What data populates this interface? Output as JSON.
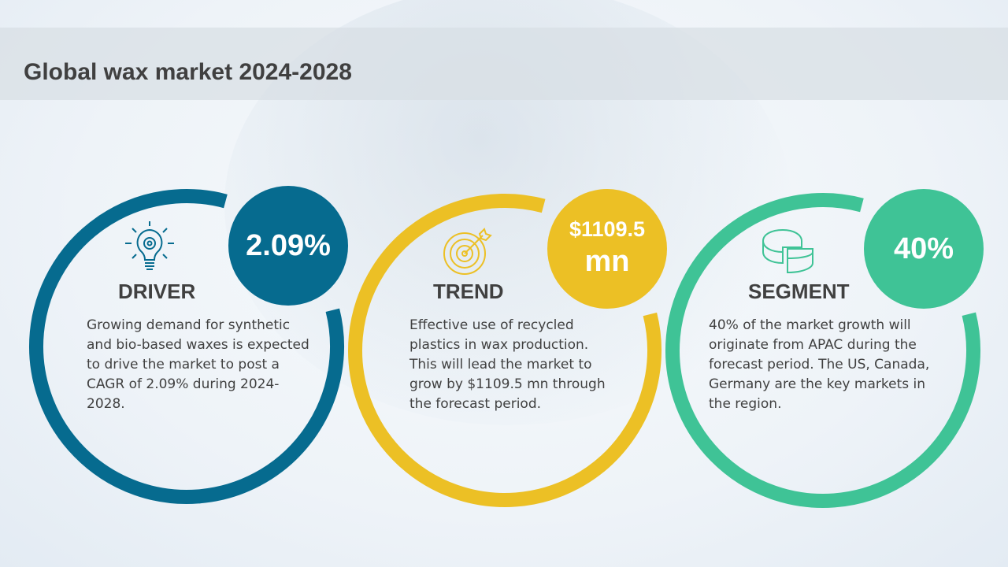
{
  "title": "Global wax market 2024-2028",
  "cards": [
    {
      "heading": "DRIVER",
      "value": "2.09%",
      "icon": "lightbulb-gear-icon",
      "color": "#066b8f",
      "text": "Growing demand for synthetic and bio-based waxes is expected to drive the market to post a CAGR of 2.09% during 2024-2028."
    },
    {
      "heading": "TREND",
      "value": "$1109.5",
      "value_unit": "mn",
      "icon": "target-arrow-icon",
      "color": "#ecc025",
      "text": "Effective use of recycled plastics in wax production. This will lead the market to grow by $1109.5 mn through the forecast period."
    },
    {
      "heading": "SEGMENT",
      "value": "40%",
      "icon": "pie-chart-icon",
      "color": "#3fc396",
      "text": "40% of the market growth will originate from APAC during the forecast period. The US, Canada, Germany are the key markets in the region."
    }
  ]
}
